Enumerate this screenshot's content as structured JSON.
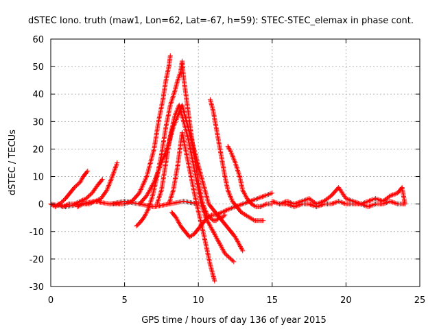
{
  "chart_data": {
    "type": "scatter",
    "title": "dSTEC Iono. truth (maw1, Lon=62, Lat=-67, h=59): STEC-STEC_elemax in phase cont.",
    "xlabel": "GPS time / hours of day 136 of year 2015",
    "ylabel": "dSTEC  / TECUs",
    "xlim": [
      0,
      25
    ],
    "ylim": [
      -30,
      60
    ],
    "x_ticks": [
      0,
      5,
      10,
      15,
      20,
      25
    ],
    "y_ticks": [
      -30,
      -20,
      -10,
      0,
      10,
      20,
      30,
      40,
      50,
      60
    ],
    "grid": true,
    "marker": "+",
    "color": "#ff0000",
    "series": [
      {
        "x": [
          0.0,
          0.3,
          0.6,
          1.0,
          1.3,
          1.6,
          2.0,
          2.2,
          2.5
        ],
        "y": [
          0,
          -1,
          0,
          2,
          4,
          6,
          8,
          10,
          12
        ]
      },
      {
        "x": [
          0.5,
          0.8,
          1.2,
          1.6,
          2.0,
          2.4,
          2.8,
          3.2,
          3.5
        ],
        "y": [
          0,
          -1,
          0,
          0,
          1,
          2,
          4,
          7,
          9
        ]
      },
      {
        "x": [
          1.8,
          2.2,
          2.6,
          3.0,
          3.4,
          3.8,
          4.1,
          4.3,
          4.5
        ],
        "y": [
          -1,
          0,
          0,
          1,
          2,
          5,
          9,
          12,
          15
        ]
      },
      {
        "x": [
          4.0,
          4.5,
          5.0,
          5.5,
          6.0,
          6.5,
          7.0,
          7.3,
          7.6,
          7.8,
          8.0,
          8.1
        ],
        "y": [
          0,
          0,
          0,
          1,
          4,
          10,
          20,
          30,
          38,
          45,
          50,
          54
        ]
      },
      {
        "x": [
          5.8,
          6.0,
          6.3,
          6.6,
          6.9,
          7.2,
          7.5,
          7.8,
          8.1,
          8.4,
          8.6,
          8.8,
          8.9,
          9.0,
          9.2,
          9.4,
          9.6,
          9.8,
          10.0,
          10.3,
          10.6,
          11.0,
          11.2,
          11.4,
          11.6,
          11.8
        ],
        "y": [
          -8,
          -7,
          -5,
          -2,
          3,
          10,
          18,
          28,
          36,
          41,
          45,
          48,
          52,
          46,
          38,
          30,
          22,
          15,
          8,
          0,
          -4,
          -6,
          -6,
          -5,
          -5,
          -4
        ]
      },
      {
        "x": [
          6.0,
          6.5,
          7.0,
          7.5,
          8.0,
          8.3,
          8.6,
          8.9,
          9.2,
          9.5,
          9.8,
          10.1,
          10.4,
          10.7,
          11.0,
          11.3,
          11.6,
          11.9,
          12.2,
          12.5,
          12.8,
          13.0
        ],
        "y": [
          0,
          3,
          8,
          15,
          22,
          28,
          32,
          36,
          30,
          24,
          18,
          12,
          6,
          0,
          -2,
          -4,
          -6,
          -8,
          -10,
          -12,
          -15,
          -17
        ]
      },
      {
        "x": [
          7.2,
          7.5,
          7.8,
          8.1,
          8.4,
          8.7,
          9.0,
          9.3,
          9.6,
          9.9,
          10.2,
          10.5,
          10.8,
          11.0,
          11.2,
          11.4,
          11.6,
          11.8,
          12.0,
          12.2,
          12.4
        ],
        "y": [
          0,
          5,
          15,
          25,
          32,
          36,
          30,
          24,
          16,
          8,
          0,
          -5,
          -8,
          -10,
          -12,
          -14,
          -16,
          -18,
          -19,
          -20,
          -21
        ]
      },
      {
        "x": [
          8.0,
          8.3,
          8.6,
          8.9,
          9.2,
          9.5,
          9.8,
          10.1,
          10.4,
          10.6,
          10.8,
          11.0,
          11.1
        ],
        "y": [
          0,
          5,
          14,
          26,
          18,
          10,
          2,
          -5,
          -12,
          -17,
          -22,
          -26,
          -28
        ]
      },
      {
        "x": [
          8.2,
          8.5,
          8.8,
          9.1,
          9.4,
          9.7,
          10.0,
          10.3,
          10.6,
          10.9,
          11.2,
          11.6,
          12.0,
          12.5,
          13.0,
          13.5,
          14.0,
          14.5,
          15.0
        ],
        "y": [
          -3,
          -5,
          -8,
          -10,
          -12,
          -11,
          -9,
          -7,
          -5,
          -4,
          -4,
          -3,
          -2,
          -1,
          0,
          1,
          2,
          3,
          4
        ]
      },
      {
        "x": [
          10.8,
          11.0,
          11.2,
          11.4,
          11.6,
          11.8,
          12.0,
          12.3,
          12.6,
          12.9,
          13.2,
          13.5,
          13.8,
          14.1,
          14.4
        ],
        "y": [
          38,
          34,
          28,
          22,
          16,
          10,
          5,
          1,
          -1,
          -3,
          -4,
          -5,
          -6,
          -6,
          -6
        ]
      },
      {
        "x": [
          12.0,
          12.2,
          12.5,
          12.8,
          13.0,
          13.3,
          13.6,
          13.9,
          14.2,
          14.6,
          15.0
        ],
        "y": [
          21,
          19,
          15,
          10,
          5,
          2,
          0,
          -1,
          -1,
          0,
          0
        ]
      },
      {
        "x": [
          15.0,
          15.5,
          16.0,
          16.5,
          17.0,
          17.5,
          18.0,
          18.5,
          19.0,
          19.5,
          20.0,
          20.5,
          21.0,
          21.5,
          22.0,
          22.5,
          23.0,
          23.5,
          23.8,
          24.0
        ],
        "y": [
          1,
          0,
          1,
          0,
          1,
          2,
          0,
          1,
          3,
          6,
          2,
          1,
          0,
          1,
          2,
          1,
          3,
          4,
          6,
          0
        ]
      },
      {
        "x": [
          15.5,
          16.0,
          16.5,
          17.0,
          17.5,
          18.0,
          18.5,
          19.0,
          19.5,
          20.0,
          20.5,
          21.0,
          21.5,
          22.0,
          22.5,
          23.0,
          23.5,
          24.0
        ],
        "y": [
          0,
          0,
          -1,
          0,
          0,
          -1,
          0,
          0,
          1,
          0,
          0,
          0,
          -1,
          0,
          0,
          1,
          0,
          0
        ]
      },
      {
        "x": [
          0.0,
          1.0,
          2.0,
          3.0,
          4.0,
          5.0,
          6.0,
          7.0,
          8.0,
          9.0,
          10.0
        ],
        "y": [
          0,
          -1,
          0,
          1,
          0,
          1,
          0,
          -1,
          0,
          1,
          0
        ]
      }
    ]
  }
}
